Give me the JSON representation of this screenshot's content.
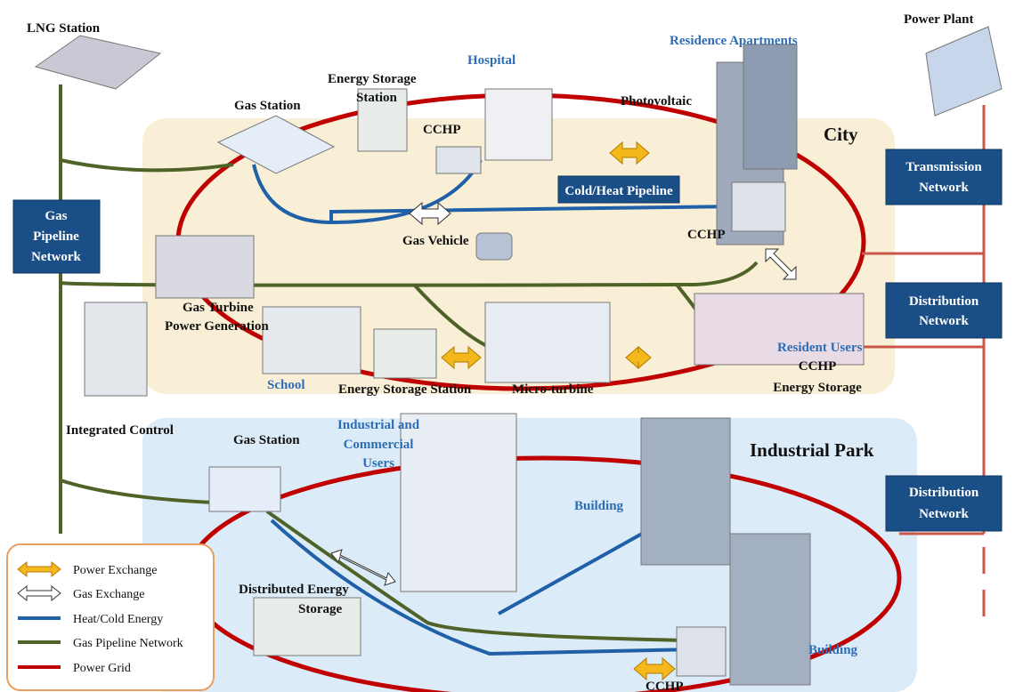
{
  "labels": {
    "lng_station": "LNG Station",
    "power_plant": "Power Plant",
    "residence_apartments": "Residence Apartments",
    "hospital": "Hospital",
    "energy_storage_station_top": [
      "Energy Storage",
      "Station"
    ],
    "gas_station_city": "Gas Station",
    "photovoltaic": "Photovoltaic",
    "cchp_hospital": "CCHP",
    "city": "City",
    "transmission_network": [
      "Transmission",
      "Network"
    ],
    "gas_pipeline_network": [
      "Gas",
      "Pipeline",
      "Network"
    ],
    "cold_heat_pipeline": "Cold/Heat Pipeline",
    "cchp_apartments": "CCHP",
    "gas_vehicle": "Gas Vehicle",
    "gas_turbine": [
      "Gas Turbine",
      "Power Generation"
    ],
    "distribution_network_city": [
      "Distribution",
      "Network"
    ],
    "resident_users": "Resident Users",
    "cchp_energy_storage": [
      "CCHP",
      "Energy Storage"
    ],
    "school": "School",
    "energy_storage_station_bottom": "Energy Storage Station",
    "micro_turbine": "Micro-turbine",
    "integrated_control": "Integrated Control",
    "gas_station_park": "Gas Station",
    "industrial_commercial_users": [
      "Industrial and",
      "Commercial",
      "Users"
    ],
    "industrial_park": "Industrial Park",
    "distribution_network_park": [
      "Distribution",
      "Network"
    ],
    "building_center": "Building",
    "distributed_energy_storage": [
      "Distributed Energy",
      "Storage"
    ],
    "building_right": "Building",
    "cchp_park": "CCHP"
  },
  "legend": [
    "Power Exchange",
    "Gas Exchange",
    "Heat/Cold Energy",
    "Gas Pipeline Network",
    "Power Grid"
  ]
}
